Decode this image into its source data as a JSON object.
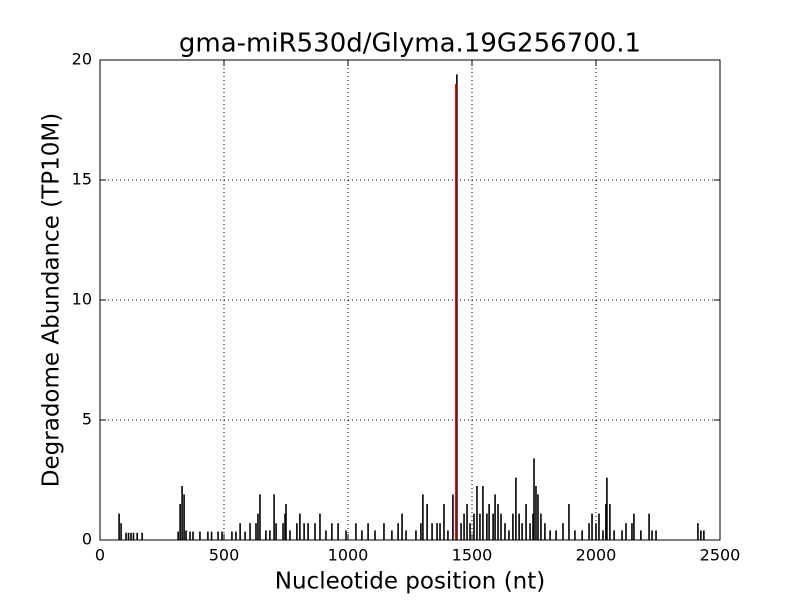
{
  "chart_data": {
    "type": "stem",
    "title": "gma-miR530d/Glyma.19G256700.1",
    "xlabel": "Nucleotide position (nt)",
    "ylabel": "Degradome Abundance (TP10M)",
    "xlim": [
      0,
      2500
    ],
    "xticks": [
      0,
      500,
      1000,
      1500,
      2000,
      2500
    ],
    "ylim": [
      0,
      20
    ],
    "yticks": [
      0,
      5,
      10,
      15,
      20
    ],
    "grid": true,
    "series": [
      {
        "color": "#000000",
        "x": [
          77,
          85,
          105,
          115,
          125,
          135,
          150,
          170,
          315,
          323,
          331,
          339,
          347,
          363,
          375,
          403,
          435,
          450,
          476,
          492,
          532,
          548,
          565,
          585,
          605,
          629,
          637,
          645,
          669,
          685,
          702,
          710,
          738,
          746,
          750,
          766,
          794,
          806,
          823,
          839,
          867,
          887,
          911,
          935,
          960,
          992,
          1032,
          1056,
          1081,
          1109,
          1145,
          1177,
          1202,
          1218,
          1234,
          1274,
          1294,
          1302,
          1319,
          1339,
          1359,
          1371,
          1387,
          1403,
          1423,
          1439,
          1456,
          1468,
          1480,
          1492,
          1508,
          1520,
          1532,
          1544,
          1560,
          1569,
          1585,
          1593,
          1605,
          1617,
          1633,
          1649,
          1665,
          1677,
          1690,
          1702,
          1718,
          1734,
          1746,
          1750,
          1758,
          1766,
          1778,
          1794,
          1815,
          1839,
          1867,
          1891,
          1915,
          1944,
          1972,
          1984,
          2000,
          2012,
          2028,
          2040,
          2044,
          2056,
          2073,
          2105,
          2121,
          2145,
          2153,
          2181,
          2214,
          2226,
          2242,
          2411,
          2423,
          2435
        ],
        "values": [
          1.1,
          0.7,
          0.3,
          0.3,
          0.3,
          0.3,
          0.3,
          0.3,
          0.35,
          1.5,
          2.25,
          1.9,
          0.4,
          0.35,
          0.35,
          0.35,
          0.35,
          0.35,
          0.35,
          0.35,
          0.35,
          0.35,
          0.7,
          0.35,
          0.7,
          0.7,
          1.1,
          1.9,
          0.4,
          0.4,
          1.9,
          0.7,
          0.7,
          1.1,
          1.5,
          0.4,
          0.7,
          1.1,
          0.7,
          0.7,
          0.7,
          1.1,
          0.4,
          0.7,
          0.7,
          0.4,
          0.7,
          0.4,
          0.7,
          0.4,
          0.7,
          0.4,
          0.7,
          1.1,
          0.4,
          0.4,
          0.7,
          1.9,
          1.5,
          0.7,
          0.7,
          0.7,
          1.5,
          0.4,
          1.9,
          19.4,
          0.7,
          1.1,
          1.5,
          0.7,
          1.1,
          2.25,
          1.1,
          2.25,
          1.1,
          1.5,
          1.1,
          1.9,
          1.5,
          1.1,
          0.7,
          0.4,
          1.1,
          2.6,
          1.1,
          0.7,
          1.5,
          0.7,
          1.1,
          3.4,
          2.25,
          1.9,
          1.1,
          0.7,
          0.4,
          0.4,
          0.7,
          1.5,
          0.4,
          0.4,
          0.7,
          1.1,
          0.7,
          1.1,
          0.4,
          1.5,
          2.6,
          1.5,
          0.4,
          0.4,
          0.7,
          0.7,
          1.1,
          0.4,
          1.1,
          0.4,
          0.4,
          0.7,
          0.4,
          0.4
        ]
      },
      {
        "color": "#e00000",
        "x": [
          1435
        ],
        "values": [
          19.0
        ]
      }
    ]
  }
}
